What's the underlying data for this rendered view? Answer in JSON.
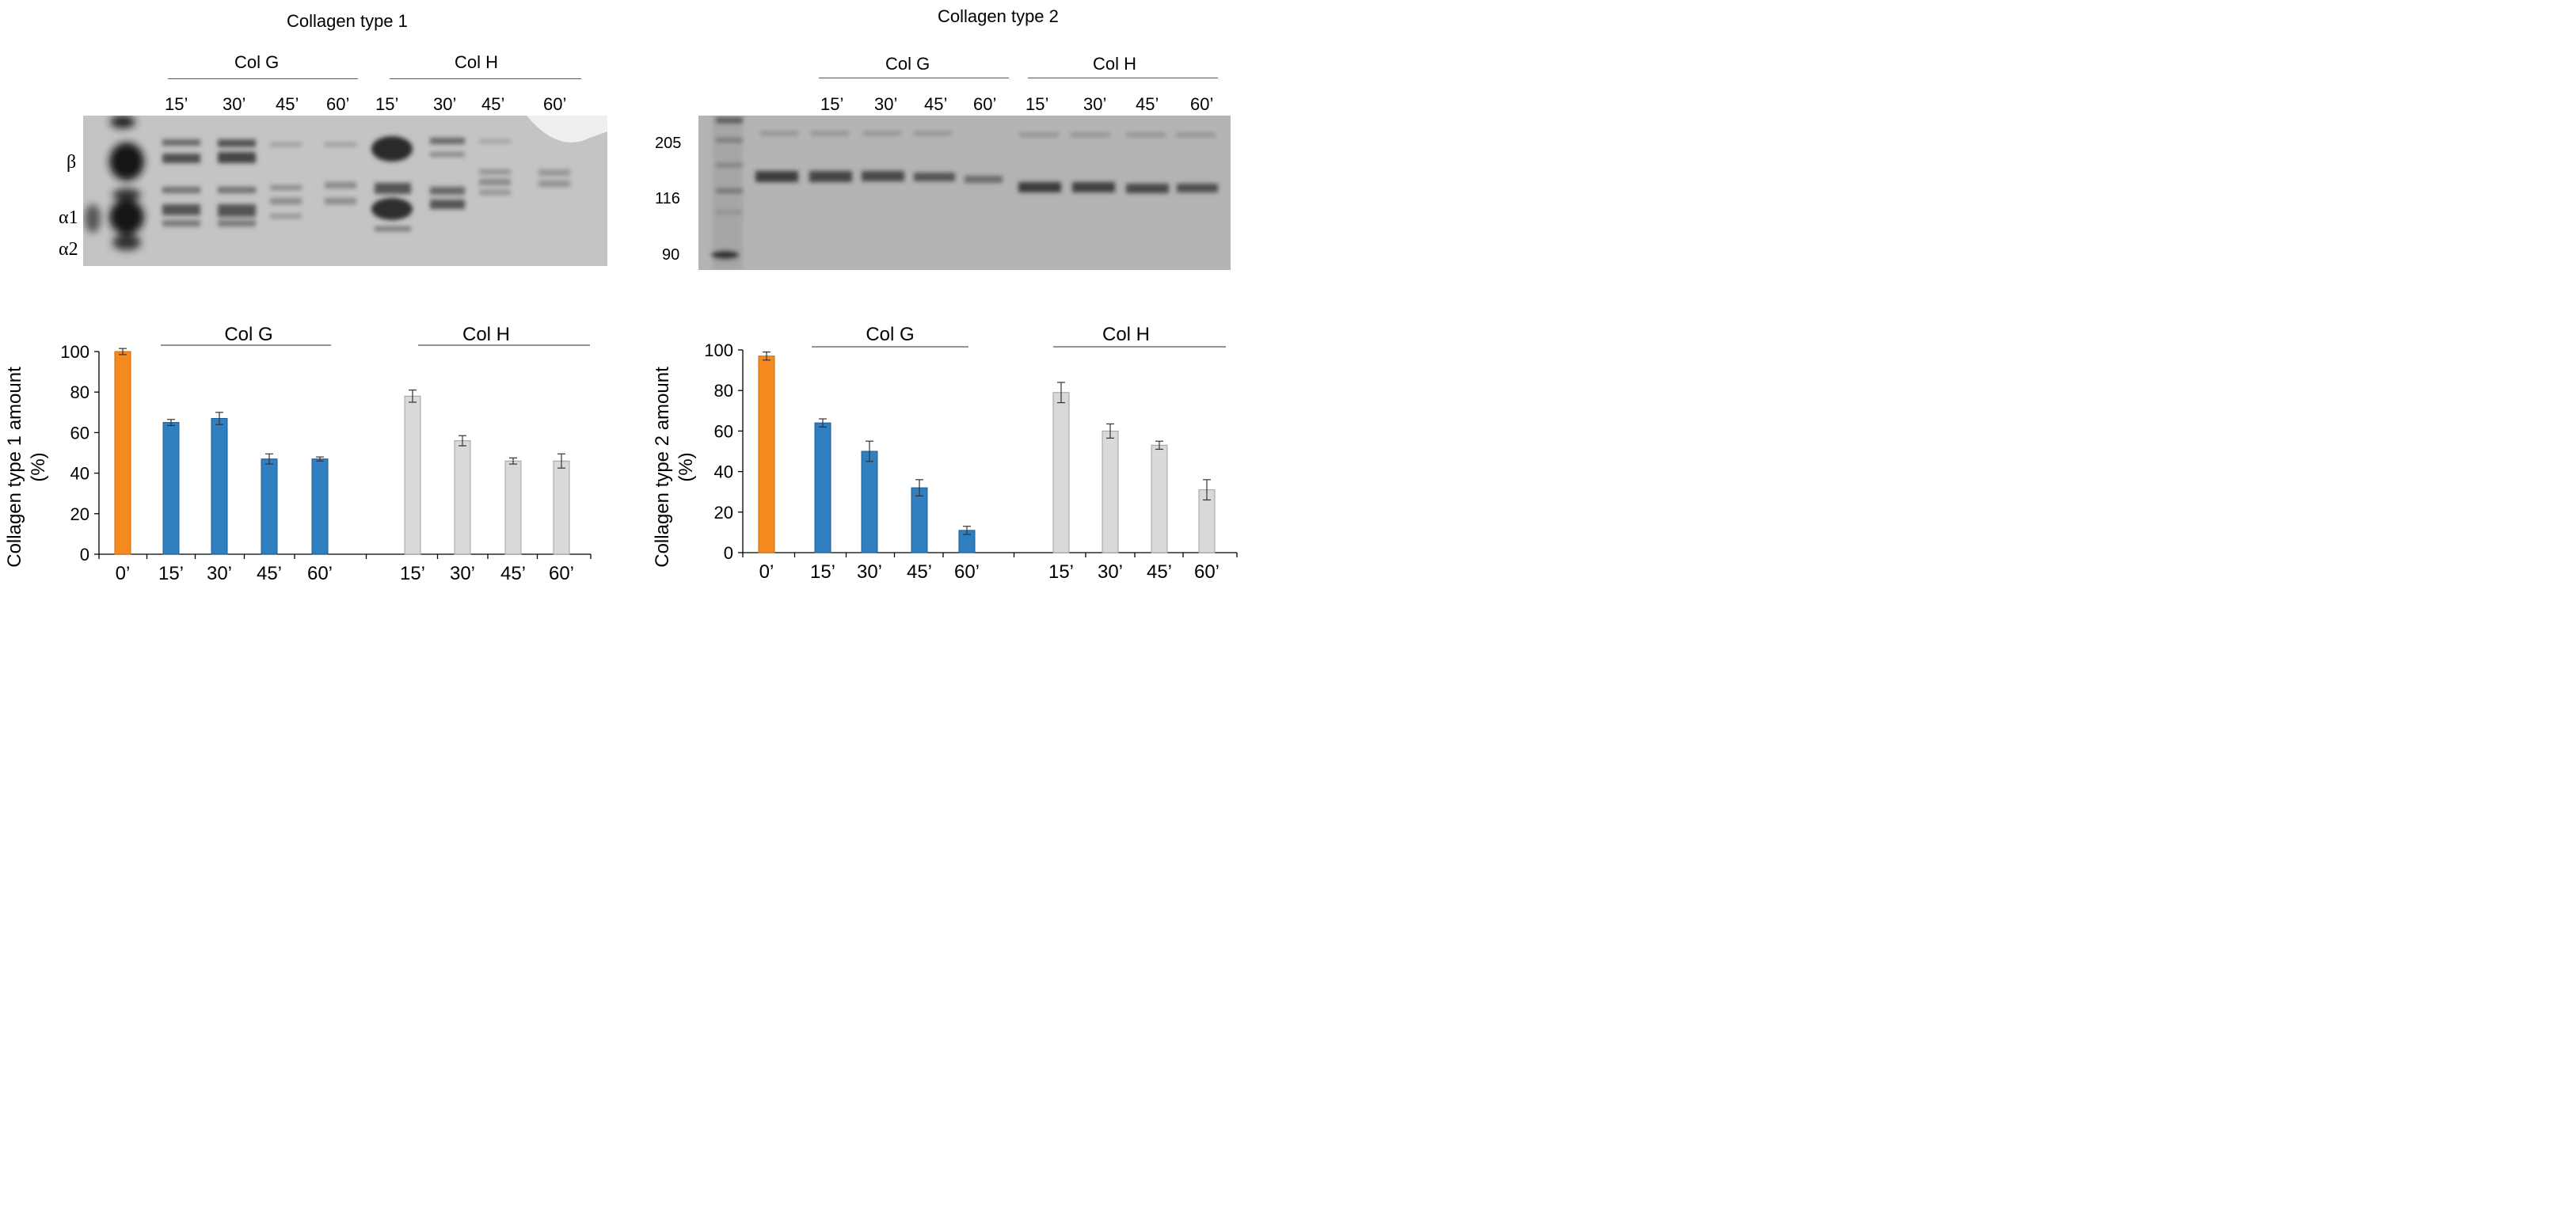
{
  "gel1": {
    "title": "Collagen type 1",
    "group_labels": [
      "Col G",
      "Col H"
    ],
    "lane_labels": [
      "15’",
      "30’",
      "45’",
      "60’",
      "15’",
      "30’",
      "45’",
      "60’"
    ],
    "band_labels": [
      "β",
      "α1",
      "α2"
    ]
  },
  "gel2": {
    "title": "Collagen type 2",
    "group_labels": [
      "Col G",
      "Col H"
    ],
    "lane_labels": [
      "15’",
      "30’",
      "45’",
      "60’",
      "15’",
      "30’",
      "45’",
      "60’"
    ],
    "marker_labels": [
      "205",
      "116",
      "90"
    ]
  },
  "colors": {
    "control": "#f58a1f",
    "colG": "#2f7fc1",
    "colH": "#d9d9d9",
    "axis": "#000000"
  },
  "chart_data": [
    {
      "type": "bar",
      "categories": [
        "0’",
        "15’",
        "30’",
        "45’",
        "60’",
        "15’",
        "30’",
        "45’",
        "60’"
      ],
      "groups": [
        "",
        "Col G",
        "Col G",
        "Col G",
        "Col G",
        "Col H",
        "Col H",
        "Col H",
        "Col H"
      ],
      "values": [
        100,
        65,
        67,
        47,
        47,
        78,
        56,
        46,
        46
      ],
      "errors": [
        1.5,
        1.5,
        3,
        2.5,
        1,
        3,
        2.5,
        1.5,
        3.5
      ],
      "bar_colors": [
        "control",
        "colG",
        "colG",
        "colG",
        "colG",
        "colH",
        "colH",
        "colH",
        "colH"
      ],
      "ylabel": "Collagen type 1 amount (%)",
      "ylabel_lines": [
        "Collagen type 1 amount",
        "(%)"
      ],
      "ylim": [
        0,
        100
      ],
      "yticks": [
        "0",
        "20",
        "40",
        "60",
        "80",
        "100"
      ],
      "group_labels": [
        "Col G",
        "Col H"
      ],
      "grid": false
    },
    {
      "type": "bar",
      "categories": [
        "0’",
        "15’",
        "30’",
        "45’",
        "60’",
        "15’",
        "30’",
        "45’",
        "60’"
      ],
      "groups": [
        "",
        "Col G",
        "Col G",
        "Col G",
        "Col G",
        "Col H",
        "Col H",
        "Col H",
        "Col H"
      ],
      "values": [
        97,
        64,
        50,
        32,
        11,
        79,
        60,
        53,
        31
      ],
      "errors": [
        2,
        2,
        5,
        4,
        2,
        5,
        3.5,
        2,
        5
      ],
      "bar_colors": [
        "control",
        "colG",
        "colG",
        "colG",
        "colG",
        "colH",
        "colH",
        "colH",
        "colH"
      ],
      "ylabel": "Collagen type 2 amount (%)",
      "ylabel_lines": [
        "Collagen type 2 amount",
        "(%)"
      ],
      "ylim": [
        0,
        100
      ],
      "yticks": [
        "0",
        "20",
        "40",
        "60",
        "80",
        "100"
      ],
      "group_labels": [
        "Col G",
        "Col H"
      ],
      "grid": false
    }
  ]
}
